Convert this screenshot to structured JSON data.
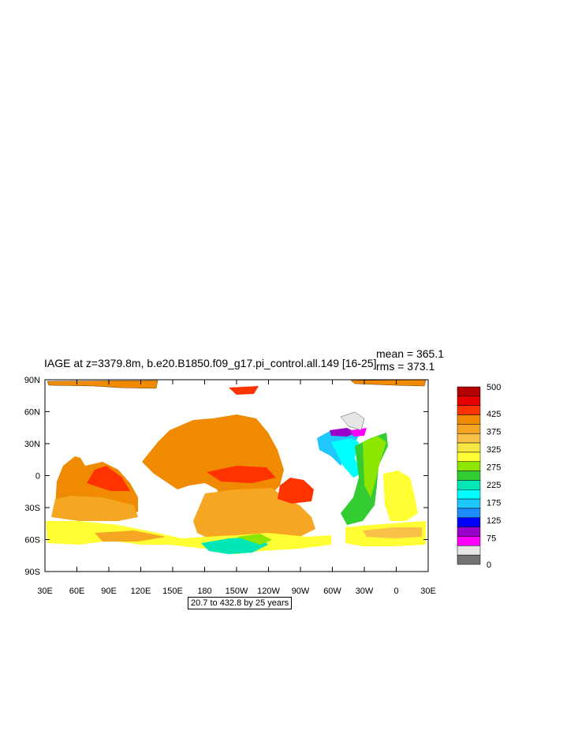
{
  "title": "IAGE at z=3379.8m, b.e20.B1850.f09_g17.pi_control.all.149 [16-25]",
  "stats": {
    "mean": "mean = 365.1",
    "rms": "rms = 373.1"
  },
  "axes": {
    "y_ticks": [
      "90N",
      "60N",
      "30N",
      "0",
      "30S",
      "60S",
      "90S"
    ],
    "x_ticks": [
      "30E",
      "60E",
      "90E",
      "120E",
      "150E",
      "180",
      "150W",
      "120W",
      "90W",
      "60W",
      "30W",
      "0",
      "30E"
    ]
  },
  "range_label": "20.7 to 432.8 by 25 years",
  "colorbar": {
    "labels": [
      {
        "text": "500",
        "level": 500
      },
      {
        "text": "425",
        "level": 425
      },
      {
        "text": "375",
        "level": 375
      },
      {
        "text": "325",
        "level": 325
      },
      {
        "text": "275",
        "level": 275
      },
      {
        "text": "225",
        "level": 225
      },
      {
        "text": "175",
        "level": 175
      },
      {
        "text": "125",
        "level": 125
      },
      {
        "text": "75",
        "level": 75
      },
      {
        "text": "0",
        "level": 0
      }
    ],
    "colors_top_to_bottom": [
      "#b40000",
      "#e60000",
      "#ff3300",
      "#f08a00",
      "#f5a623",
      "#fbc04a",
      "#f5e642",
      "#ffff33",
      "#8ce600",
      "#33cc33",
      "#00e6b4",
      "#00ffff",
      "#1ec8ff",
      "#1e8cff",
      "#0000ff",
      "#9900cc",
      "#ff00ff",
      "#e6e6e6",
      "#737373"
    ]
  }
}
